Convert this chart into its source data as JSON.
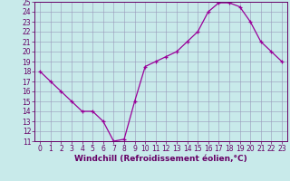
{
  "x": [
    0,
    1,
    2,
    3,
    4,
    5,
    6,
    7,
    8,
    9,
    10,
    11,
    12,
    13,
    14,
    15,
    16,
    17,
    18,
    19,
    20,
    21,
    22,
    23
  ],
  "y": [
    18,
    17,
    16,
    15,
    14,
    14,
    13,
    11,
    11.2,
    15,
    18.5,
    19,
    19.5,
    20,
    21,
    22,
    24,
    24.9,
    24.9,
    24.5,
    23,
    21,
    20,
    19
  ],
  "line_color": "#990099",
  "marker": "+",
  "marker_color": "#990099",
  "marker_size": 3.5,
  "bg_color": "#c8eaea",
  "grid_color": "#9999bb",
  "xlabel": "Windchill (Refroidissement éolien,°C)",
  "ylim": [
    11,
    25
  ],
  "xlim": [
    -0.5,
    23.5
  ],
  "yticks": [
    11,
    12,
    13,
    14,
    15,
    16,
    17,
    18,
    19,
    20,
    21,
    22,
    23,
    24,
    25
  ],
  "xticks": [
    0,
    1,
    2,
    3,
    4,
    5,
    6,
    7,
    8,
    9,
    10,
    11,
    12,
    13,
    14,
    15,
    16,
    17,
    18,
    19,
    20,
    21,
    22,
    23
  ],
  "xlabel_fontsize": 6.5,
  "tick_fontsize": 5.5,
  "axis_label_color": "#660066",
  "tick_color": "#660066",
  "spine_color": "#660066",
  "line_width": 0.9
}
